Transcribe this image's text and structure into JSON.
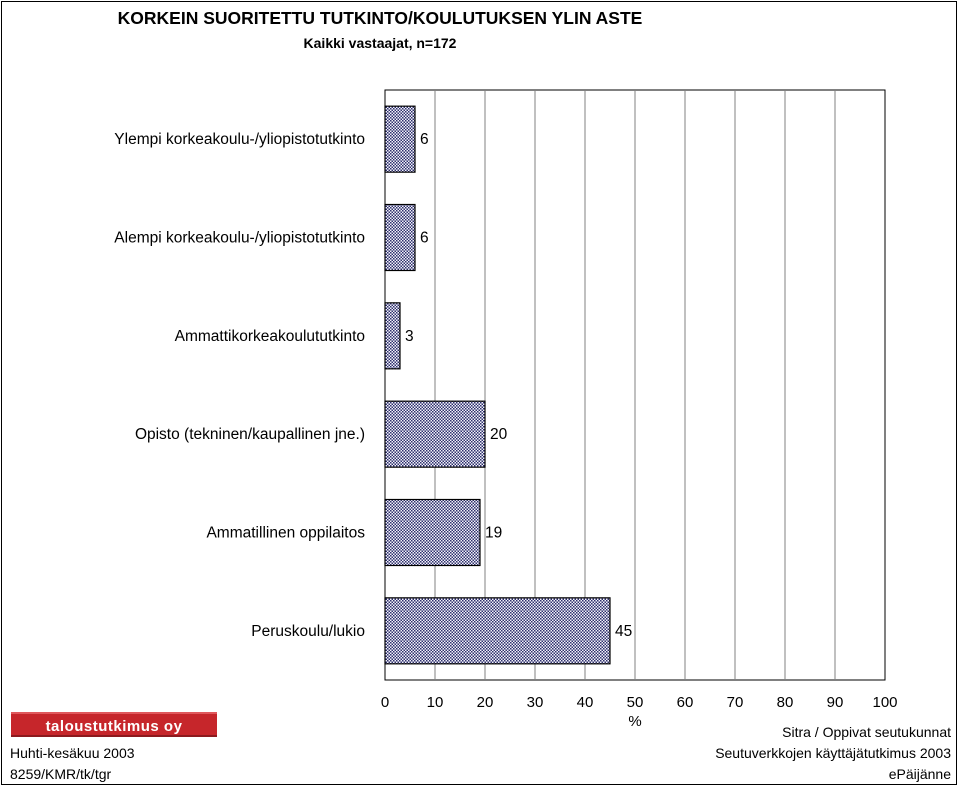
{
  "chart_data": {
    "type": "bar",
    "orientation": "horizontal",
    "title": "KORKEIN SUORITETTU TUTKINTO/KOULUTUKSEN YLIN ASTE",
    "subtitle": "Kaikki vastaajat, n=172",
    "categories": [
      "Ylempi korkeakoulu-/yliopistotutkinto",
      "Alempi korkeakoulu-/yliopistotutkinto",
      "Ammattikorkeakoulututkinto",
      "Opisto (tekninen/kaupallinen jne.)",
      "Ammatillinen oppilaitos",
      "Peruskoulu/lukio"
    ],
    "values": [
      6,
      6,
      3,
      20,
      19,
      45
    ],
    "data_labels": [
      "6",
      "6",
      "3",
      "20",
      "19",
      "45"
    ],
    "xlim": [
      0,
      100
    ],
    "xticks": [
      "0",
      "10",
      "20",
      "30",
      "40",
      "50",
      "60",
      "70",
      "80",
      "90",
      "100"
    ],
    "xlabel": "%",
    "grid": true,
    "bar_color": "#2e2f6e"
  },
  "footer": {
    "logo_text": "taloustutkimus oy",
    "date": "Huhti-kesäkuu 2003",
    "code": "8259/KMR/tk/tgr",
    "right_line1": "Sitra / Oppivat seutukunnat",
    "right_line2": "Seutuverkkojen käyttäjätutkimus 2003",
    "right_line3": "ePäijänne"
  }
}
